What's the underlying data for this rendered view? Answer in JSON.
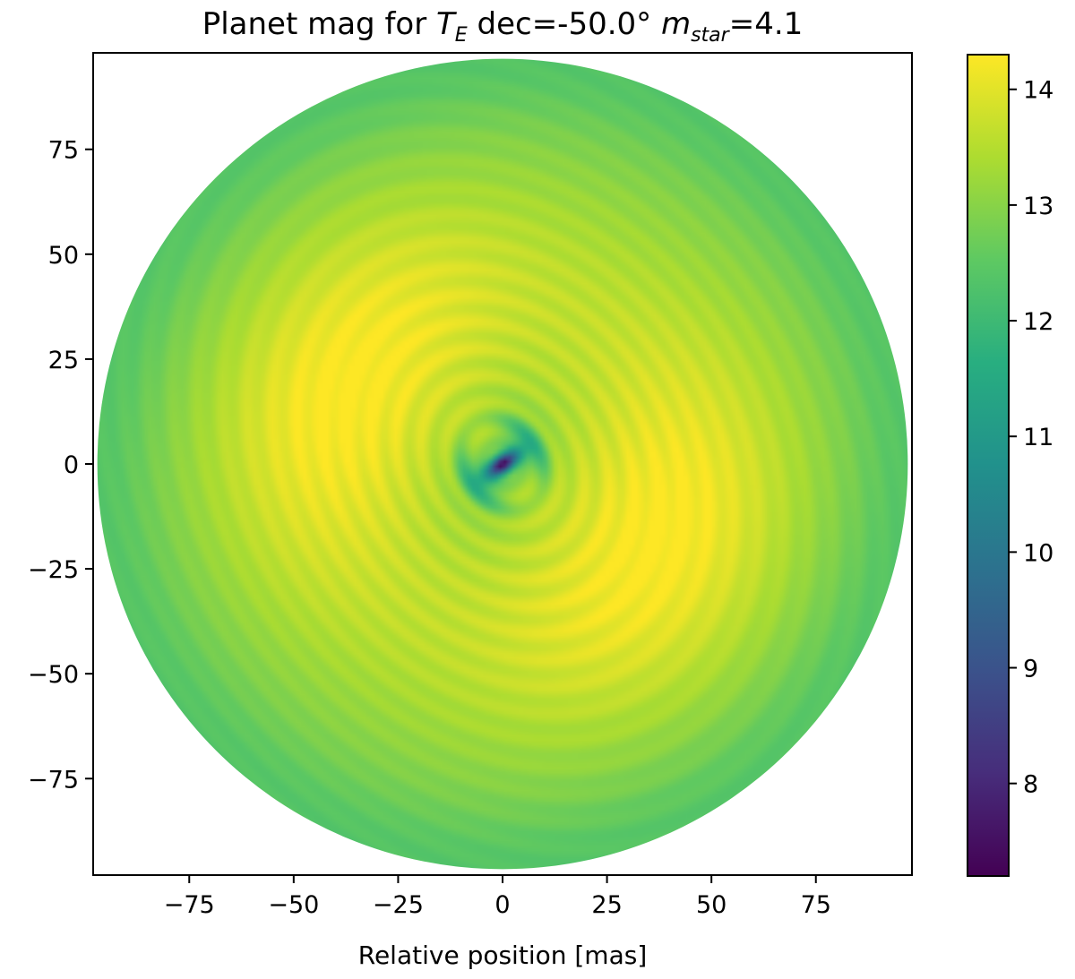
{
  "chart_data": {
    "type": "heatmap",
    "title": {
      "prefix": "Planet mag for ",
      "t_main": "T",
      "t_sub": "E",
      "middle": " dec=-50.0° ",
      "m_main": "m",
      "m_sub": "star",
      "suffix": "=4.1"
    },
    "xlabel": "Relative position [mas]",
    "ylabel": "",
    "xlim": [
      -98,
      98
    ],
    "ylim": [
      -98,
      98
    ],
    "mask_radius": 97,
    "x_ticks": [
      -75,
      -50,
      -25,
      0,
      25,
      50,
      75
    ],
    "x_tick_labels": [
      "−75",
      "−50",
      "−25",
      "0",
      "25",
      "50",
      "75"
    ],
    "y_ticks": [
      75,
      50,
      25,
      0,
      -25,
      -50,
      -75
    ],
    "y_tick_labels": [
      "75",
      "50",
      "25",
      "0",
      "−25",
      "−50",
      "−75"
    ],
    "colorbar": {
      "colormap": "viridis",
      "vmin": 7.2,
      "vmax": 14.3,
      "ticks": [
        14,
        13,
        12,
        11,
        10,
        9,
        8
      ],
      "tick_labels": [
        "14",
        "13",
        "12",
        "11",
        "10",
        "9",
        "8"
      ]
    },
    "grid": false,
    "value_description_levels": {
      "center_min": 7.3,
      "ring_peak": 14.0,
      "edge": 12.5
    }
  }
}
